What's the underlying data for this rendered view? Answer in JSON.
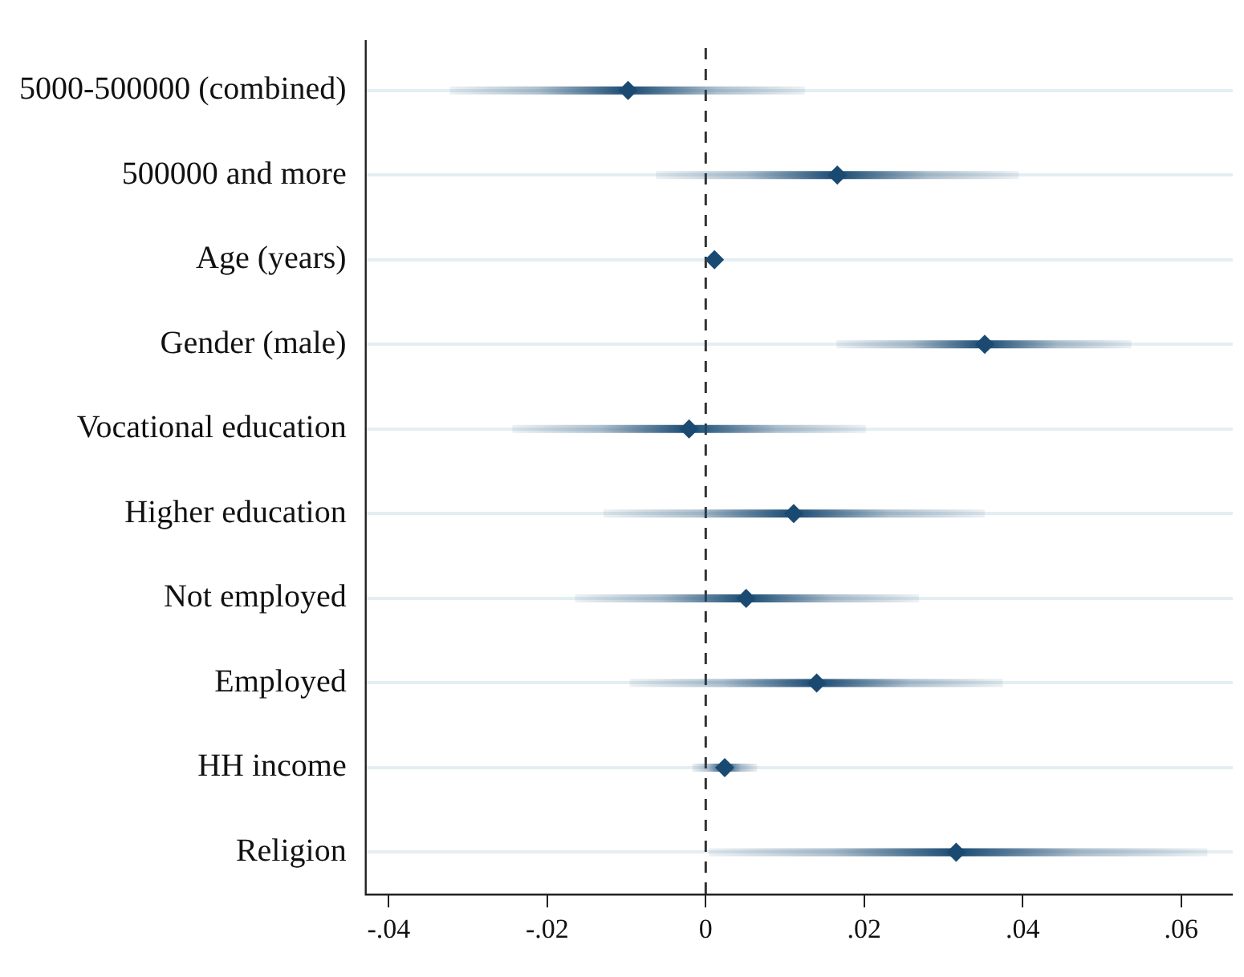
{
  "chart_data": {
    "type": "scatter",
    "orientation": "horizontal",
    "marker": "diamond",
    "grid": "y",
    "color": "#1a4a72",
    "categories": [
      "5000-500000 (combined)",
      "500000 and more",
      "Age (years)",
      "Gender (male)",
      "Vocational education",
      "Higher education",
      "Not employed",
      "Employed",
      "HH income",
      "Religion"
    ],
    "values": [
      -0.0098,
      0.0166,
      0.0011,
      0.0352,
      -0.0021,
      0.0111,
      0.0051,
      0.014,
      0.0024,
      0.0316
    ],
    "errors": [
      [
        -0.0323,
        0.0125
      ],
      [
        -0.0063,
        0.0395
      ],
      null,
      [
        0.0165,
        0.0537
      ],
      [
        -0.0244,
        0.0202
      ],
      [
        -0.0129,
        0.0352
      ],
      [
        -0.0165,
        0.0269
      ],
      [
        -0.0096,
        0.0375
      ],
      [
        -0.0017,
        0.0065
      ],
      [
        0.0004,
        0.0633
      ]
    ],
    "xlim": [
      -0.0429,
      0.0665
    ],
    "xticks": [
      {
        "value": -0.04,
        "label": "-.04"
      },
      {
        "value": -0.02,
        "label": "-.02"
      },
      0,
      {
        "value": 0.02,
        "label": ".02"
      },
      {
        "value": 0.04,
        "label": ".04"
      },
      {
        "value": 0.06,
        "label": ".06"
      }
    ],
    "ref_lines": [
      {
        "axis": "x",
        "value": 0,
        "line_style": "dashed",
        "color": "#333333"
      }
    ]
  }
}
